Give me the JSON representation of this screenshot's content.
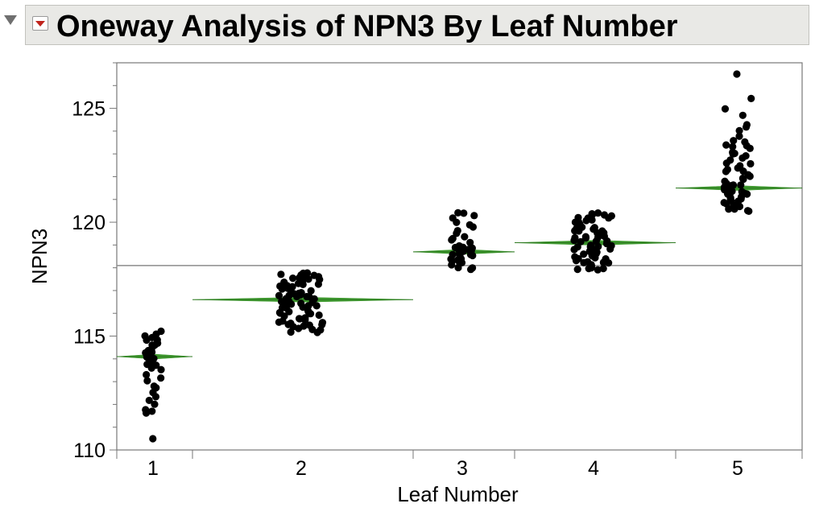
{
  "window": {
    "title": "Oneway Analysis of NPN3 By Leaf Number"
  },
  "colors": {
    "points": "#000000",
    "diamond": "#3f9a2f",
    "grand_mean": "#8c8c8c",
    "frame": "#777777",
    "title_bar": "#e9e9e6"
  },
  "icons": {
    "disclosure": "triangle-down-icon",
    "menu": "red-triangle-menu-icon"
  },
  "chart_data": {
    "type": "scatter",
    "title": "Oneway Analysis of NPN3 By Leaf Number",
    "xlabel": "Leaf Number",
    "ylabel": "NPN3",
    "categories": [
      "1",
      "2",
      "3",
      "4",
      "5"
    ],
    "ylim": [
      110,
      127
    ],
    "yticks": [
      110,
      115,
      120,
      125
    ],
    "grand_mean": 118.1,
    "means": [
      114.1,
      116.6,
      118.7,
      119.1,
      121.5
    ],
    "grid": false,
    "series": [
      {
        "category": "1",
        "values": [
          110.5,
          111.6,
          111.7,
          111.8,
          112.0,
          112.2,
          112.3,
          112.5,
          112.7,
          112.8,
          113.0,
          113.2,
          113.3,
          113.5,
          113.6,
          113.7,
          113.8,
          113.9,
          114.0,
          114.1,
          114.2,
          114.3,
          114.4,
          114.5,
          114.6,
          114.7,
          114.8,
          114.9,
          115.0,
          115.1,
          115.2,
          114.3,
          113.9,
          114.6,
          114.0,
          114.8
        ]
      },
      {
        "category": "2",
        "values": [
          115.2,
          115.2,
          115.3,
          115.3,
          115.4,
          115.4,
          115.5,
          115.5,
          115.6,
          115.6,
          115.7,
          115.7,
          115.8,
          115.8,
          115.9,
          115.9,
          116.0,
          116.0,
          116.1,
          116.1,
          116.2,
          116.2,
          116.3,
          116.3,
          116.4,
          116.4,
          116.5,
          116.5,
          116.6,
          116.6,
          116.7,
          116.7,
          116.8,
          116.8,
          116.9,
          116.9,
          117.0,
          117.0,
          117.1,
          117.1,
          117.2,
          117.2,
          117.3,
          117.3,
          117.4,
          117.4,
          117.5,
          117.5,
          117.6,
          117.6,
          117.7,
          117.7,
          117.8,
          117.8,
          115.3,
          115.6,
          116.1,
          116.5,
          116.9,
          117.3,
          117.7,
          115.8,
          116.3,
          116.7,
          117.1,
          117.5,
          115.5,
          116.0,
          116.4,
          116.8,
          117.2,
          117.6
        ]
      },
      {
        "category": "3",
        "values": [
          117.9,
          118.0,
          118.0,
          118.1,
          118.2,
          118.2,
          118.3,
          118.4,
          118.4,
          118.5,
          118.5,
          118.6,
          118.6,
          118.7,
          118.7,
          118.8,
          118.8,
          118.9,
          118.9,
          119.0,
          119.1,
          119.2,
          119.3,
          119.4,
          119.5,
          119.6,
          119.8,
          119.9,
          120.0,
          120.2,
          120.3,
          120.4,
          120.4,
          118.3,
          118.6,
          118.9
        ]
      },
      {
        "category": "4",
        "values": [
          117.9,
          117.9,
          118.0,
          118.0,
          118.1,
          118.1,
          118.2,
          118.2,
          118.3,
          118.3,
          118.4,
          118.4,
          118.5,
          118.5,
          118.6,
          118.6,
          118.7,
          118.7,
          118.8,
          118.8,
          118.9,
          118.9,
          119.0,
          119.0,
          119.1,
          119.1,
          119.2,
          119.2,
          119.3,
          119.3,
          119.4,
          119.4,
          119.5,
          119.5,
          119.6,
          119.6,
          119.7,
          119.7,
          119.8,
          119.8,
          119.9,
          119.9,
          120.0,
          120.0,
          120.1,
          120.1,
          120.2,
          120.2,
          120.3,
          120.3,
          120.4,
          120.4,
          118.4,
          118.9,
          119.4,
          119.8,
          120.2,
          118.2,
          118.7,
          119.2,
          119.6,
          120.0,
          118.0,
          118.5,
          119.0,
          119.5,
          120.3,
          118.8,
          119.3
        ]
      },
      {
        "category": "5",
        "values": [
          120.5,
          120.5,
          120.6,
          120.6,
          120.7,
          120.7,
          120.8,
          120.8,
          120.9,
          120.9,
          121.0,
          121.0,
          121.1,
          121.1,
          121.2,
          121.2,
          121.3,
          121.3,
          121.4,
          121.4,
          121.5,
          121.5,
          121.6,
          121.6,
          121.7,
          121.8,
          121.9,
          122.0,
          122.1,
          122.2,
          122.3,
          122.4,
          122.5,
          122.6,
          122.7,
          122.8,
          122.9,
          123.0,
          123.1,
          123.2,
          123.3,
          123.4,
          123.5,
          123.6,
          123.8,
          124.0,
          124.2,
          124.3,
          124.7,
          125.0,
          125.4,
          126.5,
          120.6,
          120.8,
          121.0,
          121.2,
          121.4,
          121.6,
          121.9,
          122.2,
          122.6,
          123.0,
          123.4
        ]
      }
    ]
  }
}
